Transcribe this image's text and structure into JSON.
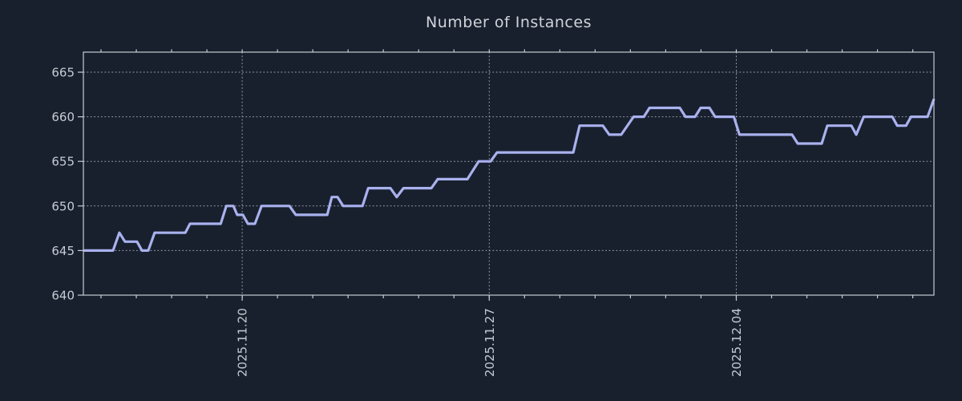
{
  "chart_data": {
    "type": "line",
    "title": "Number of Instances",
    "xlabel": "",
    "ylabel": "",
    "legend": null,
    "grid": "dotted, horizontal at y ticks and vertical at weekly x ticks",
    "x_unit": "days relative to 2025-11-20",
    "xlim": [
      -4.5,
      19.6
    ],
    "ylim": [
      640,
      667.25
    ],
    "yticks": [
      640,
      645,
      650,
      655,
      660,
      665
    ],
    "xticks_major": [
      {
        "day": 0,
        "label": "2025.11.20"
      },
      {
        "day": 7,
        "label": "2025.11.27"
      },
      {
        "day": 14,
        "label": "2025.12.04"
      }
    ],
    "xticks_minor_days": [
      -4,
      -3,
      -2,
      -1,
      0,
      1,
      2,
      3,
      4,
      5,
      6,
      7,
      8,
      9,
      10,
      11,
      12,
      13,
      14,
      15,
      16,
      17,
      18,
      19
    ],
    "series": [
      {
        "name": "instances",
        "points": [
          [
            -4.5,
            645
          ],
          [
            -3.66,
            645
          ],
          [
            -3.48,
            647
          ],
          [
            -3.32,
            646
          ],
          [
            -2.98,
            646
          ],
          [
            -2.84,
            645
          ],
          [
            -2.66,
            645
          ],
          [
            -2.48,
            647
          ],
          [
            -1.61,
            647
          ],
          [
            -1.48,
            648
          ],
          [
            -0.61,
            648
          ],
          [
            -0.45,
            650
          ],
          [
            -0.25,
            650
          ],
          [
            -0.14,
            649
          ],
          [
            0.02,
            649
          ],
          [
            0.16,
            648
          ],
          [
            0.36,
            648
          ],
          [
            0.55,
            650
          ],
          [
            1.34,
            650
          ],
          [
            1.52,
            649
          ],
          [
            2.41,
            649
          ],
          [
            2.54,
            651
          ],
          [
            2.7,
            651
          ],
          [
            2.86,
            650
          ],
          [
            3.41,
            650
          ],
          [
            3.57,
            652
          ],
          [
            4.2,
            652
          ],
          [
            4.38,
            651
          ],
          [
            4.57,
            652
          ],
          [
            5.36,
            652
          ],
          [
            5.54,
            653
          ],
          [
            6.38,
            653
          ],
          [
            6.7,
            655
          ],
          [
            7.04,
            655
          ],
          [
            7.22,
            656
          ],
          [
            9.38,
            656
          ],
          [
            9.56,
            659
          ],
          [
            10.22,
            659
          ],
          [
            10.4,
            658
          ],
          [
            10.74,
            658
          ],
          [
            11.09,
            660
          ],
          [
            11.38,
            660
          ],
          [
            11.54,
            661
          ],
          [
            12.4,
            661
          ],
          [
            12.56,
            660
          ],
          [
            12.83,
            660
          ],
          [
            12.99,
            661
          ],
          [
            13.24,
            661
          ],
          [
            13.4,
            660
          ],
          [
            13.93,
            660
          ],
          [
            14.09,
            658
          ],
          [
            15.58,
            658
          ],
          [
            15.74,
            657
          ],
          [
            16.42,
            657
          ],
          [
            16.58,
            659
          ],
          [
            17.26,
            659
          ],
          [
            17.4,
            658
          ],
          [
            17.61,
            660
          ],
          [
            18.42,
            660
          ],
          [
            18.56,
            659
          ],
          [
            18.81,
            659
          ],
          [
            18.95,
            660
          ],
          [
            19.42,
            660
          ],
          [
            19.6,
            662
          ]
        ]
      }
    ],
    "colors": {
      "background": "#18202e",
      "line": "#a9b1ee",
      "grid": "#9aa0aa",
      "axis": "#c6cbd2",
      "tick_label": "#c6cbd2",
      "title": "#d0d3d9"
    }
  }
}
